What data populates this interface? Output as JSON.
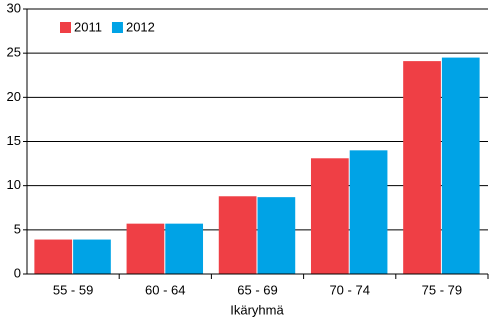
{
  "chart_data": {
    "type": "bar",
    "x_label": "Ikäryhmä",
    "categories": [
      "55 - 59",
      "60 - 64",
      "65 - 69",
      "70 - 74",
      "75 - 79"
    ],
    "series": [
      {
        "name": "2011",
        "color": "#ef3f45",
        "values": [
          3.9,
          5.7,
          8.8,
          13.1,
          24.1
        ]
      },
      {
        "name": "2012",
        "color": "#00a3e6",
        "values": [
          3.9,
          5.7,
          8.7,
          14.0,
          24.5
        ]
      }
    ],
    "ylim": [
      0,
      30
    ],
    "yticks": [
      0,
      5,
      10,
      15,
      20,
      25,
      30
    ],
    "grid": true,
    "legend": "top-left"
  }
}
